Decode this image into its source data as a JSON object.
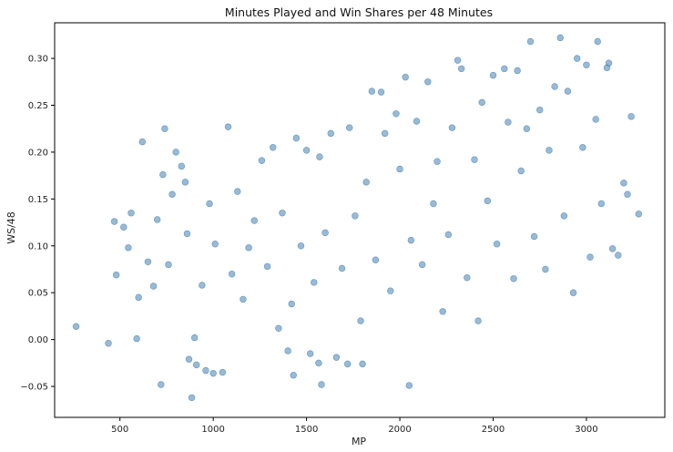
{
  "chart_data": {
    "type": "scatter",
    "title": "Minutes Played and Win Shares per 48 Minutes",
    "xlabel": "MP",
    "ylabel": "WS/48",
    "xlim": [
      150,
      3420
    ],
    "ylim": [
      -0.083,
      0.338
    ],
    "x_ticks": [
      500,
      1000,
      1500,
      2000,
      2500,
      3000
    ],
    "y_ticks": [
      -0.05,
      0.0,
      0.05,
      0.1,
      0.15,
      0.2,
      0.25,
      0.3
    ],
    "x_tick_labels": [
      "500",
      "1000",
      "1500",
      "2000",
      "2500",
      "3000"
    ],
    "y_tick_labels": [
      "−0.05",
      "0.00",
      "0.05",
      "0.10",
      "0.15",
      "0.20",
      "0.25",
      "0.30"
    ],
    "grid": false,
    "marker_color": "#4682b4",
    "marker_alpha": 0.55,
    "points": [
      [
        265,
        0.014
      ],
      [
        438,
        -0.004
      ],
      [
        470,
        0.126
      ],
      [
        480,
        0.069
      ],
      [
        520,
        0.12
      ],
      [
        545,
        0.098
      ],
      [
        560,
        0.135
      ],
      [
        590,
        0.001
      ],
      [
        600,
        0.045
      ],
      [
        620,
        0.211
      ],
      [
        650,
        0.083
      ],
      [
        680,
        0.057
      ],
      [
        700,
        0.128
      ],
      [
        720,
        -0.048
      ],
      [
        730,
        0.176
      ],
      [
        740,
        0.225
      ],
      [
        760,
        0.08
      ],
      [
        780,
        0.155
      ],
      [
        800,
        0.2
      ],
      [
        830,
        0.185
      ],
      [
        850,
        0.168
      ],
      [
        860,
        0.113
      ],
      [
        870,
        -0.021
      ],
      [
        885,
        -0.062
      ],
      [
        900,
        0.002
      ],
      [
        910,
        -0.027
      ],
      [
        940,
        0.058
      ],
      [
        960,
        -0.033
      ],
      [
        980,
        0.145
      ],
      [
        1000,
        -0.036
      ],
      [
        1010,
        0.102
      ],
      [
        1050,
        -0.035
      ],
      [
        1080,
        0.227
      ],
      [
        1100,
        0.07
      ],
      [
        1130,
        0.158
      ],
      [
        1160,
        0.043
      ],
      [
        1190,
        0.098
      ],
      [
        1220,
        0.127
      ],
      [
        1260,
        0.191
      ],
      [
        1290,
        0.078
      ],
      [
        1320,
        0.205
      ],
      [
        1350,
        0.012
      ],
      [
        1370,
        0.135
      ],
      [
        1400,
        -0.012
      ],
      [
        1420,
        0.038
      ],
      [
        1430,
        -0.038
      ],
      [
        1445,
        0.215
      ],
      [
        1470,
        0.1
      ],
      [
        1500,
        0.202
      ],
      [
        1520,
        -0.015
      ],
      [
        1540,
        0.061
      ],
      [
        1565,
        -0.025
      ],
      [
        1570,
        0.195
      ],
      [
        1580,
        -0.048
      ],
      [
        1600,
        0.114
      ],
      [
        1630,
        0.22
      ],
      [
        1660,
        -0.019
      ],
      [
        1690,
        0.076
      ],
      [
        1720,
        -0.026
      ],
      [
        1730,
        0.226
      ],
      [
        1760,
        0.132
      ],
      [
        1790,
        0.02
      ],
      [
        1800,
        -0.026
      ],
      [
        1820,
        0.168
      ],
      [
        1850,
        0.265
      ],
      [
        1870,
        0.085
      ],
      [
        1900,
        0.264
      ],
      [
        1920,
        0.22
      ],
      [
        1950,
        0.052
      ],
      [
        1980,
        0.241
      ],
      [
        2000,
        0.182
      ],
      [
        2030,
        0.28
      ],
      [
        2050,
        -0.049
      ],
      [
        2060,
        0.106
      ],
      [
        2090,
        0.233
      ],
      [
        2120,
        0.08
      ],
      [
        2150,
        0.275
      ],
      [
        2180,
        0.145
      ],
      [
        2200,
        0.19
      ],
      [
        2230,
        0.03
      ],
      [
        2260,
        0.112
      ],
      [
        2280,
        0.226
      ],
      [
        2310,
        0.298
      ],
      [
        2330,
        0.289
      ],
      [
        2360,
        0.066
      ],
      [
        2400,
        0.192
      ],
      [
        2420,
        0.02
      ],
      [
        2440,
        0.253
      ],
      [
        2470,
        0.148
      ],
      [
        2500,
        0.282
      ],
      [
        2520,
        0.102
      ],
      [
        2560,
        0.289
      ],
      [
        2580,
        0.232
      ],
      [
        2610,
        0.065
      ],
      [
        2630,
        0.287
      ],
      [
        2650,
        0.18
      ],
      [
        2680,
        0.225
      ],
      [
        2700,
        0.318
      ],
      [
        2720,
        0.11
      ],
      [
        2750,
        0.245
      ],
      [
        2780,
        0.075
      ],
      [
        2800,
        0.202
      ],
      [
        2830,
        0.27
      ],
      [
        2860,
        0.322
      ],
      [
        2880,
        0.132
      ],
      [
        2900,
        0.265
      ],
      [
        2930,
        0.05
      ],
      [
        2950,
        0.3
      ],
      [
        2980,
        0.205
      ],
      [
        3000,
        0.293
      ],
      [
        3020,
        0.088
      ],
      [
        3050,
        0.235
      ],
      [
        3060,
        0.318
      ],
      [
        3080,
        0.145
      ],
      [
        3110,
        0.29
      ],
      [
        3120,
        0.295
      ],
      [
        3140,
        0.097
      ],
      [
        3170,
        0.09
      ],
      [
        3200,
        0.167
      ],
      [
        3220,
        0.155
      ],
      [
        3240,
        0.238
      ],
      [
        3280,
        0.134
      ]
    ]
  }
}
